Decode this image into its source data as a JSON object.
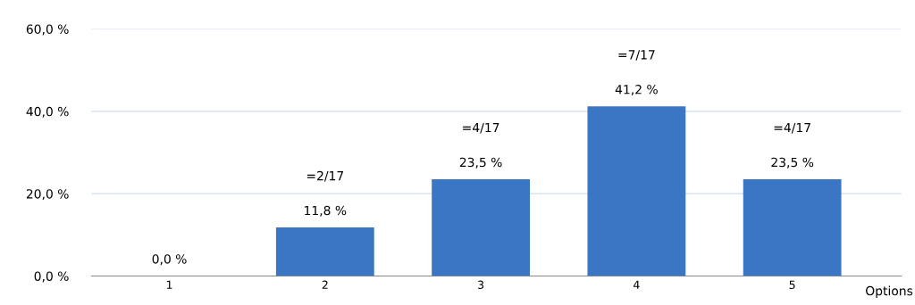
{
  "chart_data": {
    "type": "bar",
    "xlabel": "Options",
    "categories": [
      "1",
      "2",
      "3",
      "4",
      "5"
    ],
    "values": [
      0.0,
      11.8,
      23.5,
      41.2,
      23.5
    ],
    "color": "#3a76c4",
    "value_labels": [
      "0,0 %",
      "11,8 %",
      "23,5 %",
      "41,2 %",
      "23,5 %"
    ],
    "annotations": [
      "=2/17",
      "=4/17",
      "=7/17",
      "=4/17"
    ],
    "ylim": [
      0,
      60
    ],
    "yticks": [
      {
        "value": 0,
        "label": "0,0 %"
      },
      {
        "value": 20,
        "label": "20,0 %"
      },
      {
        "value": 40,
        "label": "40,0 %"
      },
      {
        "value": 60,
        "label": "60,0 %"
      }
    ],
    "grid": "y"
  }
}
